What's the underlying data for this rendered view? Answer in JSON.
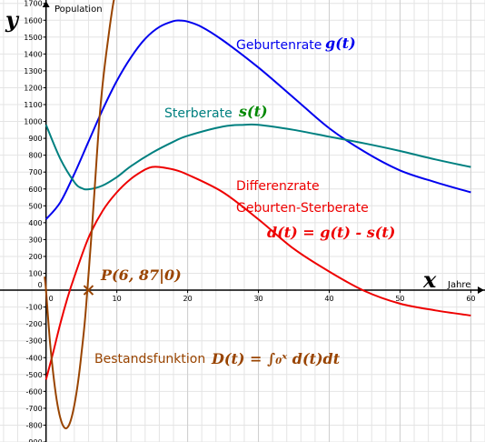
{
  "chart_data": {
    "type": "line",
    "title": "",
    "xlabel": "Jahre",
    "ylabel": "Population",
    "x_axis_symbol": "x",
    "y_axis_symbol": "y",
    "xlim": [
      -6.5,
      62
    ],
    "ylim": [
      -900,
      1720
    ],
    "grid": true,
    "legend": "inline-labels",
    "x_ticks": [
      0,
      10,
      20,
      30,
      40,
      50,
      60
    ],
    "y_ticks": [
      -900,
      -800,
      -700,
      -600,
      -500,
      -400,
      -300,
      -200,
      -100,
      0,
      100,
      200,
      300,
      400,
      500,
      600,
      700,
      800,
      900,
      1000,
      1100,
      1200,
      1300,
      1400,
      1500,
      1600,
      1700
    ],
    "series": [
      {
        "name": "Geburtenrate",
        "formula": "g(t)",
        "color": "#0000ee",
        "x": [
          0,
          2,
          4,
          6,
          8,
          10,
          12,
          14,
          16,
          18,
          19,
          20,
          22,
          25,
          30,
          35,
          40,
          45,
          50,
          55,
          60
        ],
        "y": [
          420,
          520,
          690,
          880,
          1070,
          1240,
          1380,
          1490,
          1560,
          1595,
          1598,
          1592,
          1560,
          1480,
          1320,
          1140,
          960,
          820,
          710,
          640,
          580
        ]
      },
      {
        "name": "Sterberate",
        "formula": "s(t)",
        "color": "#008080",
        "x": [
          0,
          2,
          4,
          5,
          6,
          8,
          10,
          12,
          15,
          18,
          20,
          25,
          28,
          30,
          35,
          40,
          45,
          50,
          55,
          60
        ],
        "y": [
          980,
          780,
          640,
          605,
          598,
          620,
          670,
          735,
          815,
          880,
          915,
          970,
          980,
          980,
          950,
          910,
          870,
          825,
          775,
          730
        ]
      },
      {
        "name": "Differenzrate",
        "subtitle": "Geburten-Sterberate",
        "formula": "d(t) = g(t) - s(t)",
        "color": "#ee0000",
        "x": [
          0,
          1,
          2,
          3,
          4,
          6,
          8,
          10,
          12,
          14,
          15,
          16,
          18,
          20,
          25,
          30,
          35,
          40,
          45,
          50,
          55,
          60
        ],
        "y": [
          -530,
          -370,
          -200,
          -50,
          80,
          310,
          470,
          580,
          660,
          715,
          730,
          730,
          715,
          685,
          580,
          420,
          245,
          110,
          -5,
          -80,
          -120,
          -150
        ]
      },
      {
        "name": "Bestandsfunktion",
        "formula": "D(t) = ∫₀ˣ d(t)dt",
        "color": "#994400",
        "x": [
          -0.2,
          0,
          0.5,
          1,
          1.5,
          2,
          2.5,
          3,
          3.5,
          4,
          4.5,
          5,
          5.5,
          6,
          6.5,
          7,
          7.5,
          8,
          8.5,
          9,
          9.5,
          10
        ],
        "y": [
          80,
          0,
          -280,
          -490,
          -650,
          -755,
          -810,
          -815,
          -770,
          -680,
          -550,
          -380,
          -180,
          87,
          370,
          680,
          990,
          1220,
          1400,
          1560,
          1700,
          1800
        ]
      }
    ],
    "annotations": [
      {
        "label": "P(6, 87|0)",
        "x": 6,
        "y": 0,
        "marker": "x",
        "color": "#994400"
      }
    ]
  }
}
